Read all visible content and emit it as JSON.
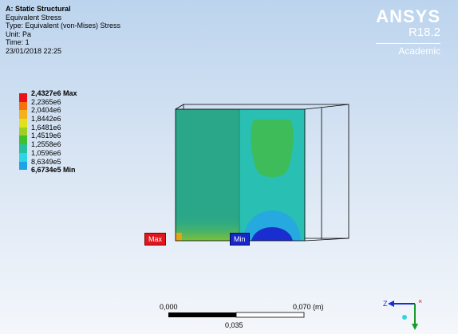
{
  "header": {
    "title": "A: Static Structural",
    "result": "Equivalent Stress",
    "type": "Type: Equivalent (von-Mises) Stress",
    "unit": "Unit: Pa",
    "time": "Time: 1",
    "date": "23/01/2018 22:25"
  },
  "logo": {
    "brand": "ANSYS",
    "version": "R18.2",
    "edition": "Academic"
  },
  "legend": [
    {
      "label": "2,4327e6 Max",
      "color": "#e8121b",
      "bold": true
    },
    {
      "label": "2,2365e6",
      "color": "#f6700f"
    },
    {
      "label": "2,0404e6",
      "color": "#f4b21a"
    },
    {
      "label": "1,8442e6",
      "color": "#dfe11c"
    },
    {
      "label": "1,6481e6",
      "color": "#9ecf22"
    },
    {
      "label": "1,4519e6",
      "color": "#3fc12f"
    },
    {
      "label": "1,2558e6",
      "color": "#26c09e"
    },
    {
      "label": "1,0596e6",
      "color": "#2ed5e6"
    },
    {
      "label": "8,6349e5",
      "color": "#1da3e6"
    },
    {
      "label": "6,6734e5 Min",
      "color": "#1a2ed0",
      "bold": true
    }
  ],
  "probes": {
    "max": "Max",
    "min": "Min"
  },
  "scale_bar": {
    "start": "0,000",
    "end": "0,070 (m)",
    "mid": "0,035"
  },
  "colors": {
    "contour_main": "#2bab8a",
    "contour_right": "#28c1b3",
    "mesh_edge": "#000000"
  }
}
